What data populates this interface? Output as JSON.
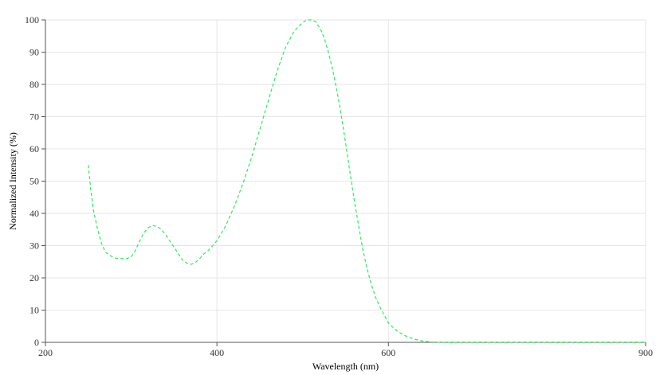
{
  "chart_data": {
    "type": "line",
    "title": "",
    "xlabel": "Wavelength (nm)",
    "ylabel": "Normalized Intensity (%)",
    "xlim": [
      200,
      900
    ],
    "ylim": [
      0,
      100
    ],
    "x_ticks": [
      200,
      400,
      600,
      900
    ],
    "y_ticks": [
      0,
      10,
      20,
      30,
      40,
      50,
      60,
      70,
      80,
      90,
      100
    ],
    "grid": true,
    "legend": "none",
    "series": [
      {
        "color": "#22ee55",
        "line_style": "dashed",
        "x": [
          250,
          253,
          256,
          260,
          265,
          270,
          275,
          280,
          285,
          290,
          295,
          300,
          305,
          310,
          315,
          320,
          325,
          330,
          335,
          340,
          345,
          350,
          355,
          360,
          365,
          370,
          375,
          380,
          385,
          390,
          395,
          400,
          410,
          420,
          430,
          440,
          450,
          460,
          470,
          480,
          490,
          500,
          505,
          510,
          515,
          520,
          525,
          530,
          535,
          540,
          545,
          550,
          555,
          560,
          565,
          570,
          575,
          580,
          585,
          590,
          595,
          600,
          610,
          620,
          630,
          640,
          650,
          660,
          670,
          700,
          750,
          800,
          850,
          900
        ],
        "y": [
          55,
          47,
          41,
          36,
          31,
          28,
          27,
          26.2,
          26,
          26,
          26,
          26.5,
          28.5,
          31.5,
          34,
          35.6,
          36.2,
          36,
          35,
          33.5,
          31.5,
          29.5,
          27.5,
          25.5,
          24.5,
          24.2,
          24.8,
          26,
          27.5,
          28.5,
          30,
          31.5,
          36,
          42,
          49,
          57,
          66,
          75,
          84,
          91.5,
          96.5,
          99.2,
          100,
          100,
          99.5,
          97.5,
          94.5,
          90,
          84.5,
          78,
          70.5,
          62,
          53,
          44.5,
          36.5,
          29,
          23,
          18,
          14,
          11,
          8.5,
          6,
          3.5,
          2,
          1,
          0.4,
          0.1,
          0,
          0,
          0,
          0,
          0,
          0,
          0
        ]
      }
    ]
  }
}
